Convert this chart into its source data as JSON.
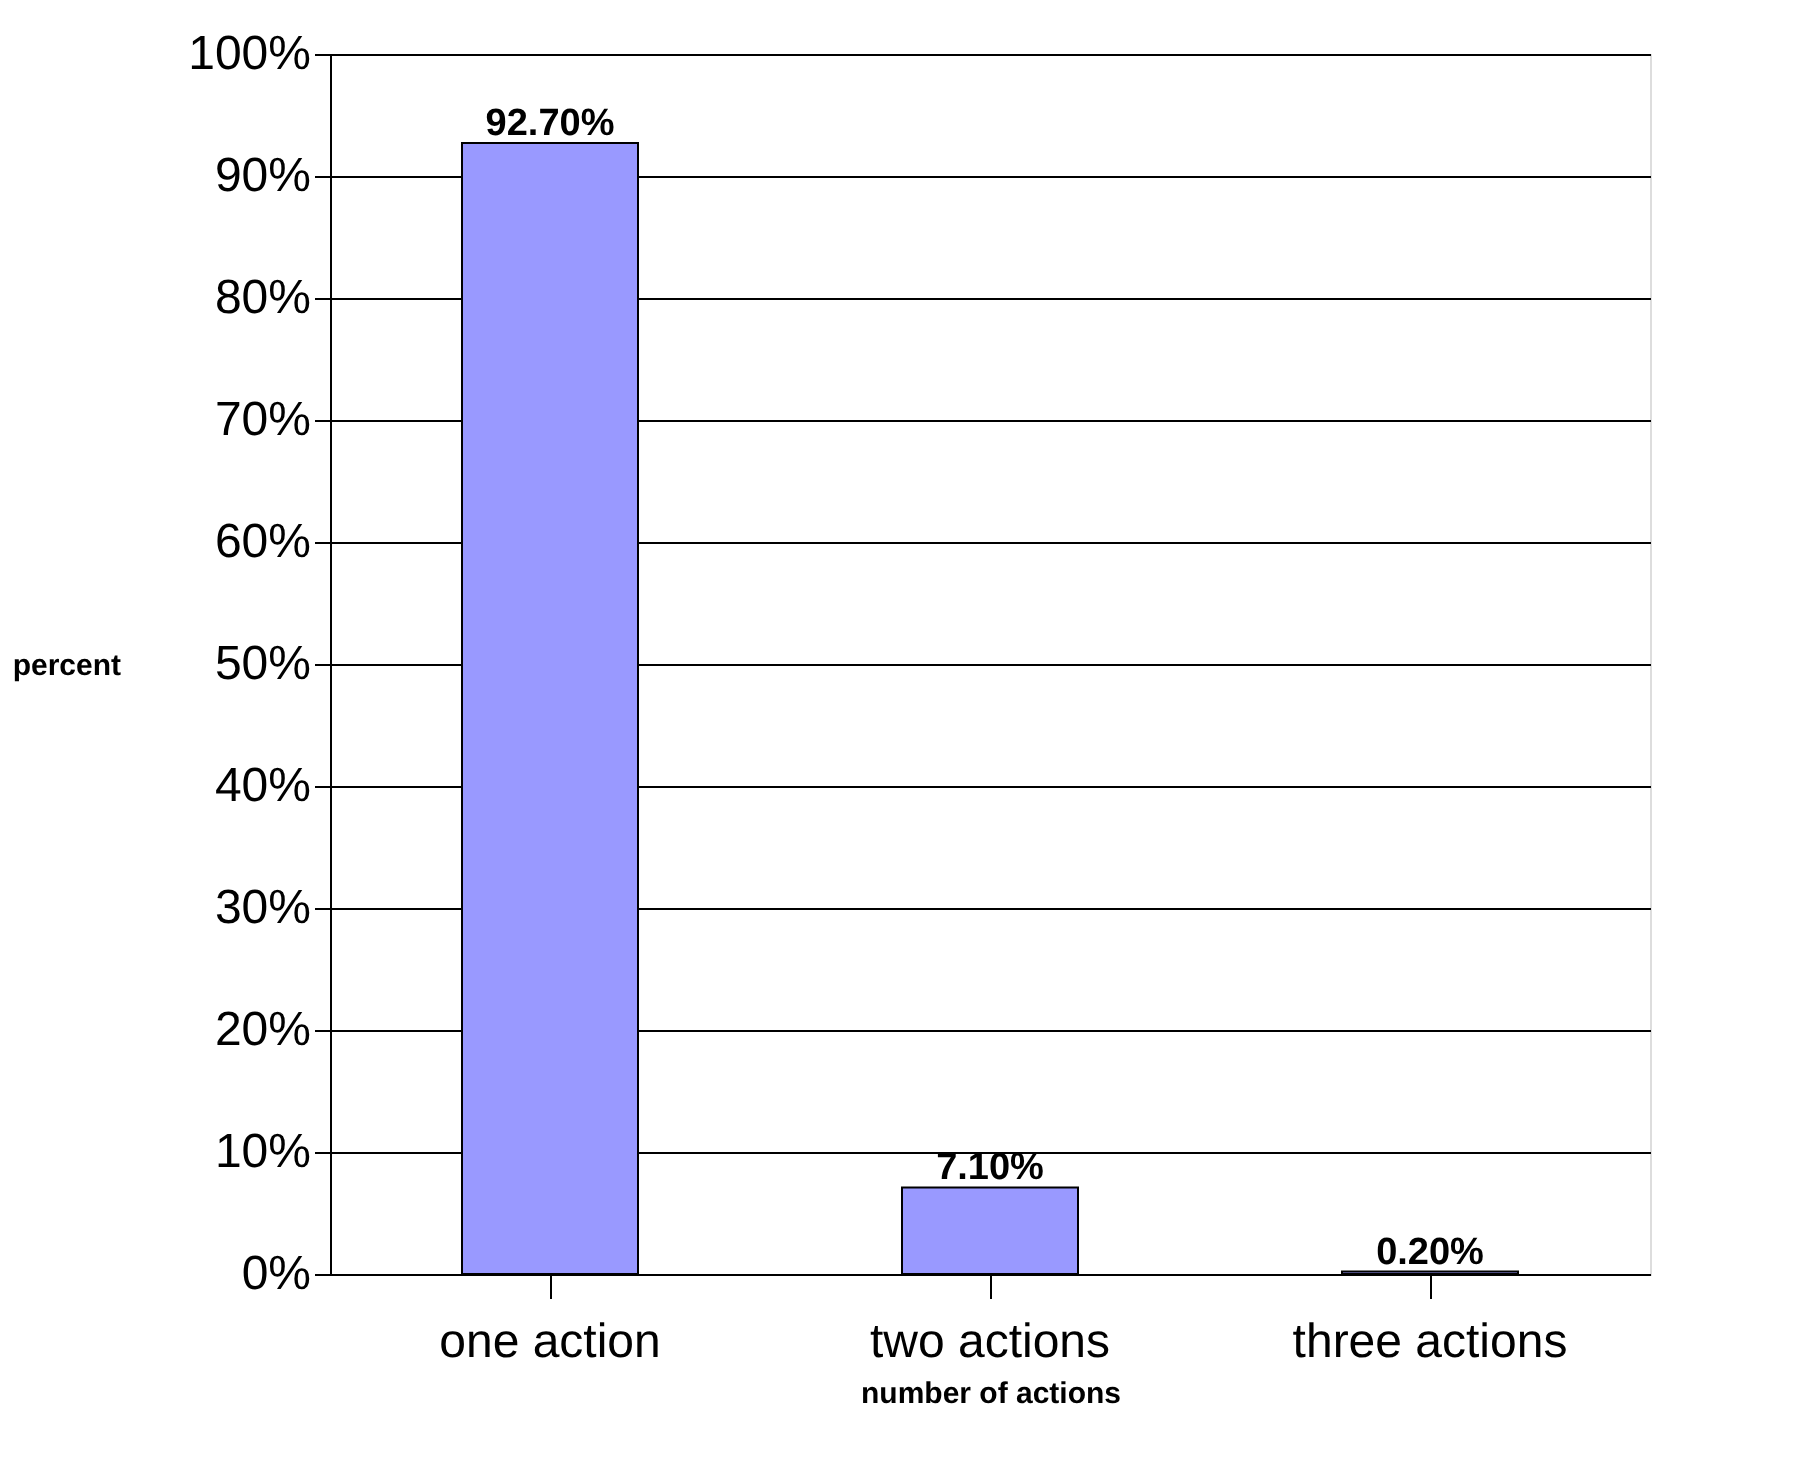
{
  "chart_data": {
    "type": "bar",
    "xlabel": "number of actions",
    "ylabel": "percent",
    "categories": [
      "one action",
      "two actions",
      "three actions"
    ],
    "values": [
      92.7,
      7.1,
      0.2
    ],
    "color": "#9999ff",
    "value_labels": [
      "92.70%",
      "7.10%",
      "0.20%"
    ],
    "ylim": [
      0,
      100
    ],
    "yticks": [
      {
        "value": 0,
        "label": "0%"
      },
      {
        "value": 10,
        "label": "10%"
      },
      {
        "value": 20,
        "label": "20%"
      },
      {
        "value": 30,
        "label": "30%"
      },
      {
        "value": 40,
        "label": "40%"
      },
      {
        "value": 50,
        "label": "50%"
      },
      {
        "value": 60,
        "label": "60%"
      },
      {
        "value": 70,
        "label": "70%"
      },
      {
        "value": 80,
        "label": "80%"
      },
      {
        "value": 90,
        "label": "90%"
      },
      {
        "value": 100,
        "label": "100%"
      }
    ],
    "grid": "y"
  }
}
